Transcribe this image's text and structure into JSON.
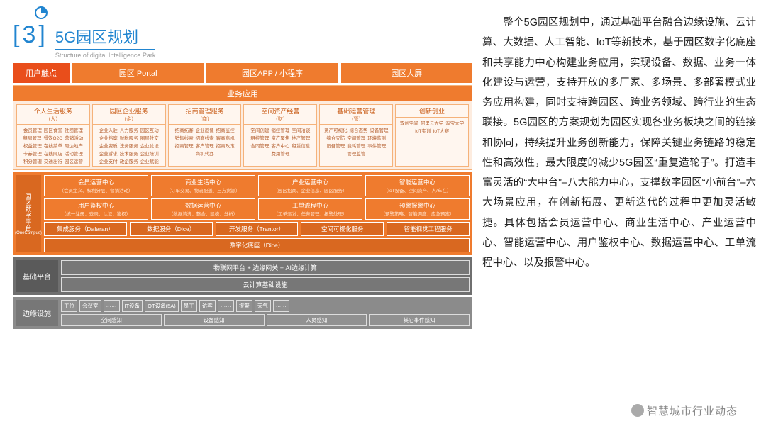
{
  "header": {
    "num_left": "[",
    "num": "3",
    "num_right": "]",
    "title": "5G园区规划",
    "subtitle": "Structure of digital Intelligence Park"
  },
  "colors": {
    "primary": "#e94e1b",
    "orange": "#ef7b2e",
    "orange_light": "#fdecdf",
    "orange_border": "#f5b27a",
    "gray_dark": "#6f6f6f",
    "gray_med": "#8b8b8b",
    "blue": "#2185d0"
  },
  "touchpoint": {
    "label": "用户触点",
    "tabs": [
      "园区 Portal",
      "园区APP / 小程序",
      "园区大屏"
    ]
  },
  "bizapp": {
    "title": "业务应用",
    "cols": [
      {
        "title": "个人生活服务",
        "sub": "（人）",
        "items": [
          "会员管理",
          "园区食堂",
          "社团管理",
          "租房管理",
          "餐饮O2O",
          "营销活动",
          "权益管理",
          "在线菜单",
          "周边地产",
          "卡券管理",
          "在线网店",
          "活动管理",
          "积分管理",
          "交通出行",
          "园区运营"
        ]
      },
      {
        "title": "园区企业服务",
        "sub": "（企）",
        "items": [
          "企业入驻",
          "人力服务",
          "园区互动",
          "企业档案",
          "财税服务",
          "圈层社交",
          "企业资质",
          "法务服务",
          "企业论坛",
          "企业诉求",
          "技术服务",
          "企业培训",
          "企业支付",
          "政企服务",
          "企业赋能"
        ]
      },
      {
        "title": "招商管理服务",
        "sub": "（商）",
        "items": [
          "招商拓客",
          "企业画像",
          "招商监控",
          "销售线索",
          "招商线索",
          "客商商机",
          "招商管理",
          "客户管理",
          "招商政策",
          "商机代办"
        ]
      },
      {
        "title": "空间资产经营",
        "sub": "（财）",
        "items": [
          "空间创建",
          "销控管理",
          "空间洽谈",
          "租控管理",
          "资产聚焦",
          "地产管理",
          "合同管理",
          "客户中心",
          "租赁信息",
          "费用管理"
        ]
      },
      {
        "title": "基础运营管理",
        "sub": "（管）",
        "items": [
          "资产可视化",
          "综合态势",
          "设备管理",
          "综合安防",
          "空间管理",
          "环境监测",
          "设备管理",
          "能耗管理",
          "事件管理",
          "管理监管"
        ]
      },
      {
        "title": "创新创业",
        "sub": "",
        "items": [
          "双创空间",
          "阿里云大学",
          "淘宝大学",
          "IoT实训",
          "IoT大赛"
        ]
      }
    ]
  },
  "platform": {
    "label": "园区数字平台",
    "label_sub": "(OneCampus)",
    "row1": [
      {
        "t": "会员运营中心",
        "s": "（会员定义、权利分层、营销活动）"
      },
      {
        "t": "商业生活中心",
        "s": "（订单交易、物流配送、三方货源）"
      },
      {
        "t": "产业运营中心",
        "s": "（园区招商、企业信息、园区服务）"
      },
      {
        "t": "智能运营中心",
        "s": "（IoT设备、空间资产、人/车在）"
      }
    ],
    "row2": [
      {
        "t": "用户鉴权中心",
        "s": "（统一注册、登录、认证、鉴权）"
      },
      {
        "t": "数据运营中心",
        "s": "（数据清洗、整合、建模、分析）"
      },
      {
        "t": "工单流程中心",
        "s": "（工单派发、任务管理、报警处理）"
      },
      {
        "t": "预警报警中心",
        "s": "（预警策略、智能调度、应急预案）"
      }
    ],
    "row3": [
      "集成服务（Dalaran）",
      "数据服务（Dice）",
      "开发服务（Trantor）",
      "空间可视化服务",
      "智能视觉工程服务"
    ],
    "row4": "数字化底座（Dice）"
  },
  "base": {
    "label": "基础平台",
    "rows": [
      "物联网平台 + 边缘网关 + AI边缘计算",
      "云计算基础设施"
    ]
  },
  "edge": {
    "label": "边缘设施",
    "row1": [
      "工位",
      "会议室",
      "……",
      "IT设备",
      "OT设备(5A)",
      "员工",
      "访客",
      "……",
      "报警",
      "天气",
      "……"
    ],
    "row2": [
      "空间感知",
      "设备感知",
      "人员感知",
      "其它事件感知"
    ]
  },
  "paragraph": "　　整个5G园区规划中，通过基础平台融合边缘设施、云计算、大数据、人工智能、IoT等新技术，基于园区数字化底座和共享能力中心构建业务应用，实现设备、数据、业务一体化建设与运营，支持开放的多厂家、多场景、多部署模式业务应用构建，同时支持跨园区、跨业务领域、跨行业的生态联接。5G园区的方案规划为园区实现各业务板块之间的链接和协同，持续提升业务创新能力，保障关键业务链路的稳定性和高效性，最大限度的减少5G园区“重复造轮子”。打造丰富灵活的“大中台”–八大能力中心，支撑数字园区“小前台”–六大场景应用，在创新拓展、更新迭代的过程中更加灵活敏捷。具体包括会员运营中心、商业生活中心、产业运营中心、智能运营中心、用户鉴权中心、数据运营中心、工单流程中心、以及报警中心。",
  "watermark": "智慧城市行业动态"
}
